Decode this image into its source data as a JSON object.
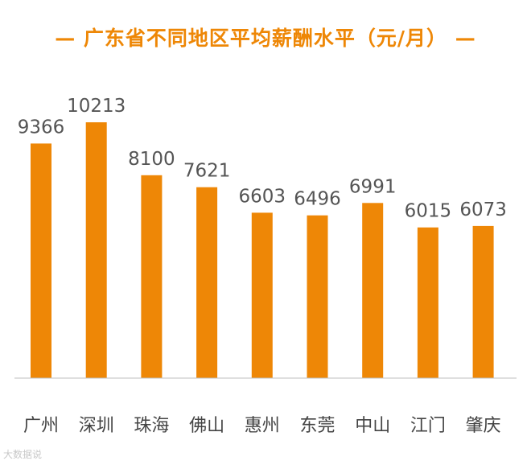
{
  "title": "— 广东省不同地区平均薪酬水平（元/月） —",
  "watermark": "大数据说",
  "colors": {
    "bar": "#ee8706",
    "title": "#ee8706",
    "label": "#555555",
    "axis": "#bfbfbf"
  },
  "chart_data": {
    "type": "bar",
    "title": "— 广东省不同地区平均薪酬水平（元/月） —",
    "categories": [
      "广州",
      "深圳",
      "珠海",
      "佛山",
      "惠州",
      "东莞",
      "中山",
      "江门",
      "肇庆"
    ],
    "values": [
      9366,
      10213,
      8100,
      7621,
      6603,
      6496,
      6991,
      6015,
      6073
    ],
    "xlabel": "",
    "ylabel": "",
    "ylim": [
      0,
      10213
    ],
    "grid": false,
    "data_labels": true
  }
}
